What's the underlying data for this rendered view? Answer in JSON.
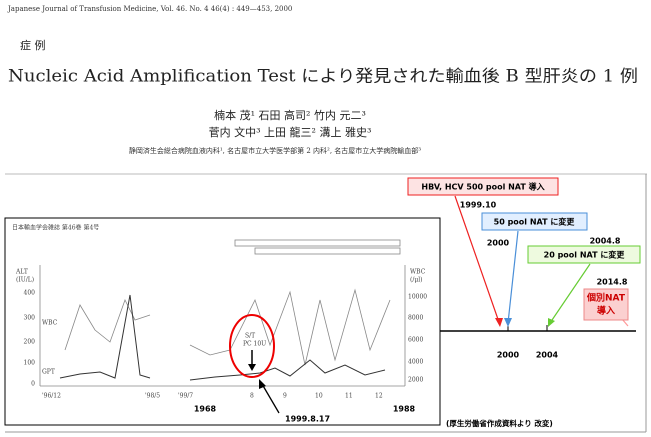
{
  "paper": {
    "journal": "Japanese Journal of Transfusion Medicine, Vol. 46. No. 4 46(4) : 449—453, 2000",
    "section": "症 例",
    "title": "Nucleic Acid Amplification Test により発見された輸血後 B 型肝炎の 1 例",
    "authors": [
      "楠本 茂¹ 石田 高司² 竹内 元二³",
      "菅内 文中³ 上田 龍三² 溝上 雅史³"
    ],
    "affiliation": "静岡済生会総合病院血液内科¹, 名古屋市立大学医学部第 2 内科², 名古屋市立大学病院輸血部³"
  },
  "timeline": {
    "callouts": [
      {
        "label": "HBV, HCV 500 pool NAT 導入",
        "date": "1999.10"
      },
      {
        "label": "50 pool NAT に変更",
        "date": "2000"
      },
      {
        "label": "20 pool NAT に変更",
        "date": "2004.8"
      },
      {
        "label": [
          "個別NAT",
          "導入"
        ],
        "date": "2014.8"
      }
    ],
    "axis_labels": [
      "2000",
      "2004"
    ]
  },
  "figure": {
    "header": "日本輸血学会雑誌 第46巻 第4号",
    "left_axis": {
      "title": [
        "ALT",
        "(IU/L)"
      ],
      "ticks": [
        "400",
        "300",
        "200",
        "100",
        "0"
      ]
    },
    "right_axis": {
      "title": [
        "WBC",
        "(/μl)"
      ],
      "ticks": [
        "10000",
        "8000",
        "6000",
        "4000",
        "2000"
      ]
    },
    "series_labels": [
      "WBC",
      "GPT"
    ],
    "annotation": [
      "S/T",
      "PC 10U"
    ],
    "x_labels": [
      "'96/12",
      "'98/5",
      "'99/7",
      "8",
      "9",
      "10",
      "11",
      "12"
    ],
    "years": [
      "1968",
      "1988"
    ],
    "event_date": "1999.8.17"
  },
  "source": "(厚生労働省作成資料より 改変)"
}
